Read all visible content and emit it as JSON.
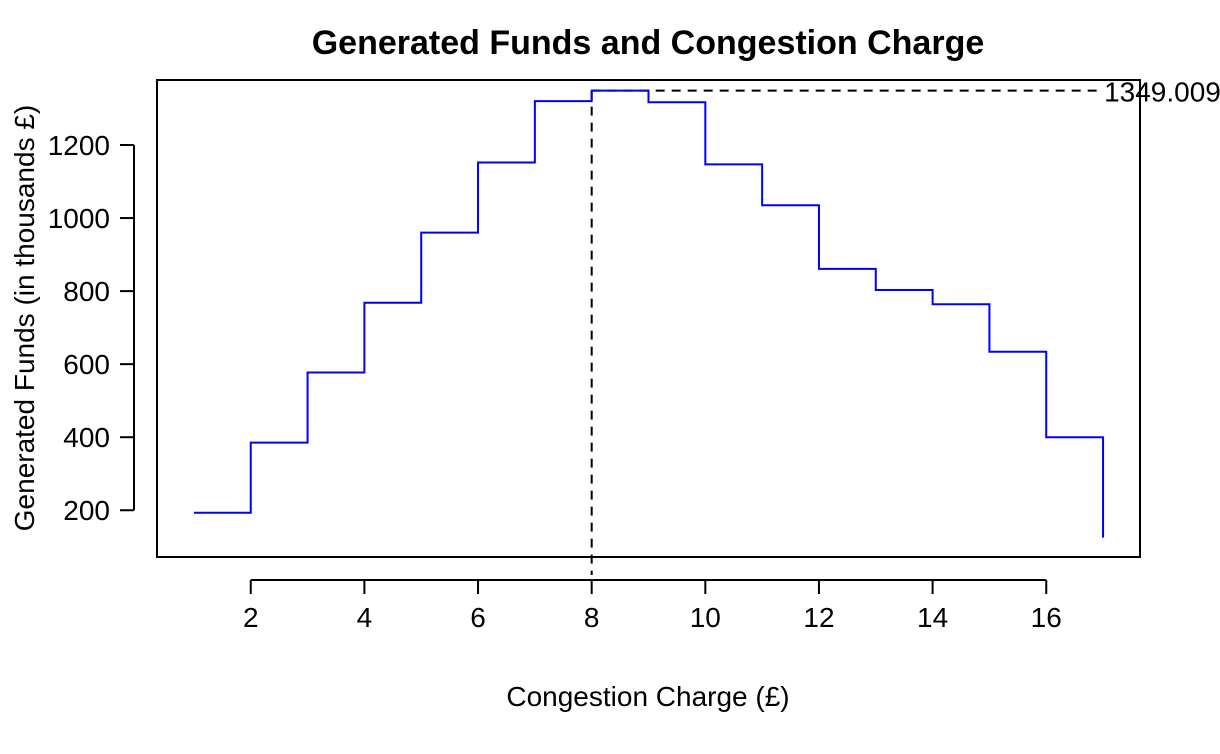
{
  "chart_data": {
    "type": "line",
    "step": true,
    "title": "Generated Funds and Congestion Charge",
    "xlabel": "Congestion Charge (£)",
    "ylabel": "Generated Funds (in thousands £)",
    "xlim": [
      0.35,
      17.65
    ],
    "ylim": [
      72,
      1378
    ],
    "xticks": [
      2,
      4,
      6,
      8,
      10,
      12,
      14,
      16
    ],
    "yticks": [
      200,
      400,
      600,
      800,
      1000,
      1200
    ],
    "grid": false,
    "series": [
      {
        "color": "#0000ff",
        "x": [
          1,
          2,
          3,
          4,
          5,
          6,
          7,
          8,
          9,
          10,
          11,
          12,
          13,
          14,
          15,
          16,
          17
        ],
        "y": [
          193,
          385,
          577,
          768,
          960,
          1152,
          1320,
          1349.009,
          1317,
          1147,
          1035,
          861,
          803,
          764,
          634,
          400,
          125
        ]
      }
    ],
    "reference_lines": {
      "color": "#000000",
      "x": 8,
      "y": 1349.009
    },
    "annotations": [
      {
        "text": "1349.009",
        "x": 17,
        "y": 1349.009
      }
    ]
  }
}
